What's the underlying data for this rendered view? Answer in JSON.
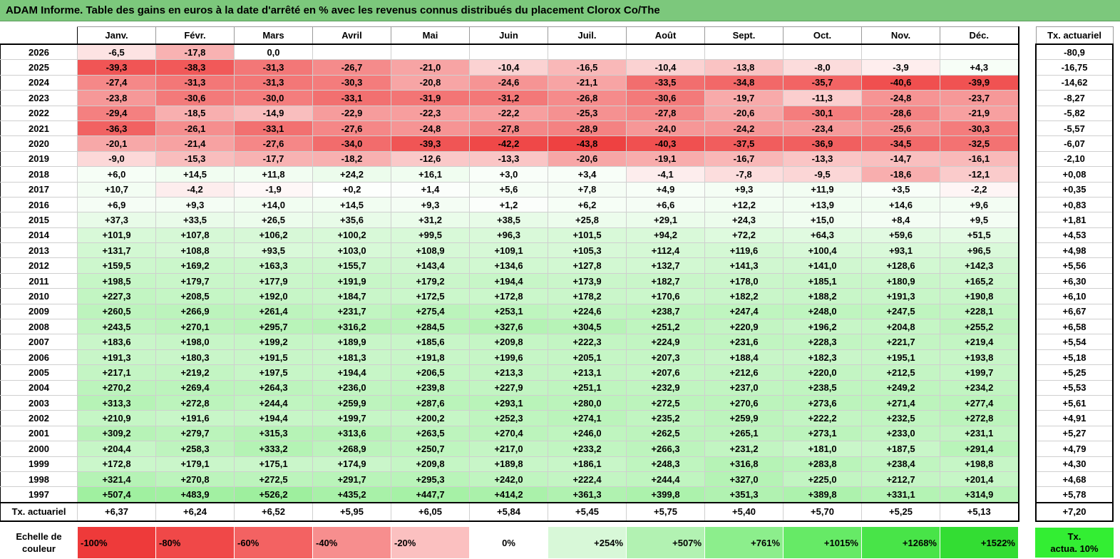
{
  "title": "ADAM Informe. Table des gains en euros à la date d'arrêté en % avec les revenus connus distribués du placement Clorox Co/The",
  "months": [
    "Janv.",
    "Févr.",
    "Mars",
    "Avril",
    "Mai",
    "Juin",
    "Juil.",
    "Août",
    "Sept.",
    "Oct.",
    "Nov.",
    "Déc."
  ],
  "actuarial_header": "Tx. actuariel",
  "rows": [
    {
      "year": "2026",
      "values": [
        "-6,5",
        "-17,8",
        "0,0",
        "",
        "",
        "",
        "",
        "",
        "",
        "",
        "",
        ""
      ],
      "rate": "-80,9"
    },
    {
      "year": "2025",
      "values": [
        "-39,3",
        "-38,3",
        "-31,3",
        "-26,7",
        "-21,0",
        "-10,4",
        "-16,5",
        "-10,4",
        "-13,8",
        "-8,0",
        "-3,9",
        "+4,3"
      ],
      "rate": "-16,75"
    },
    {
      "year": "2024",
      "values": [
        "-27,4",
        "-31,3",
        "-31,3",
        "-30,3",
        "-20,8",
        "-24,6",
        "-21,1",
        "-33,5",
        "-34,8",
        "-35,7",
        "-40,6",
        "-39,9"
      ],
      "rate": "-14,62"
    },
    {
      "year": "2023",
      "values": [
        "-23,8",
        "-30,6",
        "-30,0",
        "-33,1",
        "-31,9",
        "-31,2",
        "-26,8",
        "-30,6",
        "-19,7",
        "-11,3",
        "-24,8",
        "-23,7"
      ],
      "rate": "-8,27"
    },
    {
      "year": "2022",
      "values": [
        "-29,4",
        "-18,5",
        "-14,9",
        "-22,9",
        "-22,3",
        "-22,2",
        "-25,3",
        "-27,8",
        "-20,6",
        "-30,1",
        "-28,6",
        "-21,9"
      ],
      "rate": "-5,82"
    },
    {
      "year": "2021",
      "values": [
        "-36,3",
        "-26,1",
        "-33,1",
        "-27,6",
        "-24,8",
        "-27,8",
        "-28,9",
        "-24,0",
        "-24,2",
        "-23,4",
        "-25,6",
        "-30,3"
      ],
      "rate": "-5,57"
    },
    {
      "year": "2020",
      "values": [
        "-20,1",
        "-21,4",
        "-27,6",
        "-34,0",
        "-39,3",
        "-42,2",
        "-43,8",
        "-40,3",
        "-37,5",
        "-36,9",
        "-34,5",
        "-32,5"
      ],
      "rate": "-6,07"
    },
    {
      "year": "2019",
      "values": [
        "-9,0",
        "-15,3",
        "-17,7",
        "-18,2",
        "-12,6",
        "-13,3",
        "-20,6",
        "-19,1",
        "-16,7",
        "-13,3",
        "-14,7",
        "-16,1"
      ],
      "rate": "-2,10"
    },
    {
      "year": "2018",
      "values": [
        "+6,0",
        "+14,5",
        "+11,8",
        "+24,2",
        "+16,1",
        "+3,0",
        "+3,4",
        "-4,1",
        "-7,8",
        "-9,5",
        "-18,6",
        "-12,1"
      ],
      "rate": "+0,08"
    },
    {
      "year": "2017",
      "values": [
        "+10,7",
        "-4,2",
        "-1,9",
        "+0,2",
        "+1,4",
        "+5,6",
        "+7,8",
        "+4,9",
        "+9,3",
        "+11,9",
        "+3,5",
        "-2,2"
      ],
      "rate": "+0,35"
    },
    {
      "year": "2016",
      "values": [
        "+6,9",
        "+9,3",
        "+14,0",
        "+14,5",
        "+9,3",
        "+1,2",
        "+6,2",
        "+6,6",
        "+12,2",
        "+13,9",
        "+14,6",
        "+9,6"
      ],
      "rate": "+0,83"
    },
    {
      "year": "2015",
      "values": [
        "+37,3",
        "+33,5",
        "+26,5",
        "+35,6",
        "+31,2",
        "+38,5",
        "+25,8",
        "+29,1",
        "+24,3",
        "+15,0",
        "+8,4",
        "+9,5"
      ],
      "rate": "+1,81"
    },
    {
      "year": "2014",
      "values": [
        "+101,9",
        "+107,8",
        "+106,2",
        "+100,2",
        "+99,5",
        "+96,3",
        "+101,5",
        "+94,2",
        "+72,2",
        "+64,3",
        "+59,6",
        "+51,5"
      ],
      "rate": "+4,53"
    },
    {
      "year": "2013",
      "values": [
        "+131,7",
        "+108,8",
        "+93,5",
        "+103,0",
        "+108,9",
        "+109,1",
        "+105,3",
        "+112,4",
        "+119,6",
        "+100,4",
        "+93,1",
        "+96,5"
      ],
      "rate": "+4,98"
    },
    {
      "year": "2012",
      "values": [
        "+159,5",
        "+169,2",
        "+163,3",
        "+155,7",
        "+143,4",
        "+134,6",
        "+127,8",
        "+132,7",
        "+141,3",
        "+141,0",
        "+128,6",
        "+142,3"
      ],
      "rate": "+5,56"
    },
    {
      "year": "2011",
      "values": [
        "+198,5",
        "+179,7",
        "+177,9",
        "+191,9",
        "+179,2",
        "+194,4",
        "+173,9",
        "+182,7",
        "+178,0",
        "+185,1",
        "+180,9",
        "+165,2"
      ],
      "rate": "+6,30"
    },
    {
      "year": "2010",
      "values": [
        "+227,3",
        "+208,5",
        "+192,0",
        "+184,7",
        "+172,5",
        "+172,8",
        "+178,2",
        "+170,6",
        "+182,2",
        "+188,2",
        "+191,3",
        "+190,8"
      ],
      "rate": "+6,10"
    },
    {
      "year": "2009",
      "values": [
        "+260,5",
        "+266,9",
        "+261,4",
        "+231,7",
        "+275,4",
        "+253,1",
        "+224,6",
        "+238,7",
        "+247,4",
        "+248,0",
        "+247,5",
        "+228,1"
      ],
      "rate": "+6,67"
    },
    {
      "year": "2008",
      "values": [
        "+243,5",
        "+270,1",
        "+295,7",
        "+316,2",
        "+284,5",
        "+327,6",
        "+304,5",
        "+251,2",
        "+220,9",
        "+196,2",
        "+204,8",
        "+255,2"
      ],
      "rate": "+6,58"
    },
    {
      "year": "2007",
      "values": [
        "+183,6",
        "+198,0",
        "+199,2",
        "+189,9",
        "+185,6",
        "+209,8",
        "+222,3",
        "+224,9",
        "+231,6",
        "+228,3",
        "+221,7",
        "+219,4"
      ],
      "rate": "+5,54"
    },
    {
      "year": "2006",
      "values": [
        "+191,3",
        "+180,3",
        "+191,5",
        "+181,3",
        "+191,8",
        "+199,6",
        "+205,1",
        "+207,3",
        "+188,4",
        "+182,3",
        "+195,1",
        "+193,8"
      ],
      "rate": "+5,18"
    },
    {
      "year": "2005",
      "values": [
        "+217,1",
        "+219,2",
        "+197,5",
        "+194,4",
        "+206,5",
        "+213,3",
        "+213,1",
        "+207,6",
        "+212,6",
        "+220,0",
        "+212,5",
        "+199,7"
      ],
      "rate": "+5,25"
    },
    {
      "year": "2004",
      "values": [
        "+270,2",
        "+269,4",
        "+264,3",
        "+236,0",
        "+239,8",
        "+227,9",
        "+251,1",
        "+232,9",
        "+237,0",
        "+238,5",
        "+249,2",
        "+234,2"
      ],
      "rate": "+5,53"
    },
    {
      "year": "2003",
      "values": [
        "+313,3",
        "+272,8",
        "+244,4",
        "+259,9",
        "+287,6",
        "+293,1",
        "+280,0",
        "+272,5",
        "+270,6",
        "+273,6",
        "+271,4",
        "+277,4"
      ],
      "rate": "+5,61"
    },
    {
      "year": "2002",
      "values": [
        "+210,9",
        "+191,6",
        "+194,4",
        "+199,7",
        "+200,2",
        "+252,3",
        "+274,1",
        "+235,2",
        "+259,9",
        "+222,2",
        "+232,5",
        "+272,8"
      ],
      "rate": "+4,91"
    },
    {
      "year": "2001",
      "values": [
        "+309,2",
        "+279,7",
        "+315,3",
        "+313,6",
        "+263,5",
        "+270,4",
        "+246,0",
        "+262,5",
        "+265,1",
        "+273,1",
        "+233,0",
        "+231,1"
      ],
      "rate": "+5,27"
    },
    {
      "year": "2000",
      "values": [
        "+204,4",
        "+258,3",
        "+333,2",
        "+268,9",
        "+250,7",
        "+217,0",
        "+233,2",
        "+266,3",
        "+231,2",
        "+181,0",
        "+187,5",
        "+291,4"
      ],
      "rate": "+4,79"
    },
    {
      "year": "1999",
      "values": [
        "+172,8",
        "+179,1",
        "+175,1",
        "+174,9",
        "+209,8",
        "+189,8",
        "+186,1",
        "+248,3",
        "+316,8",
        "+283,8",
        "+238,4",
        "+198,8"
      ],
      "rate": "+4,30"
    },
    {
      "year": "1998",
      "values": [
        "+321,4",
        "+270,8",
        "+272,5",
        "+291,7",
        "+295,3",
        "+242,0",
        "+222,4",
        "+244,4",
        "+327,0",
        "+225,0",
        "+212,7",
        "+201,4"
      ],
      "rate": "+4,68"
    },
    {
      "year": "1997",
      "values": [
        "+507,4",
        "+483,9",
        "+526,2",
        "+435,2",
        "+447,7",
        "+414,2",
        "+361,3",
        "+399,8",
        "+351,3",
        "+389,8",
        "+331,1",
        "+314,9"
      ],
      "rate": "+5,78"
    }
  ],
  "footer": {
    "label": "Tx. actuariel",
    "values": [
      "+6,37",
      "+6,24",
      "+6,52",
      "+5,95",
      "+6,05",
      "+5,84",
      "+5,45",
      "+5,75",
      "+5,40",
      "+5,70",
      "+5,25",
      "+5,13"
    ],
    "rate": "+7,20"
  },
  "legend": {
    "label_line1": "Echelle de",
    "label_line2": "couleur",
    "items": [
      {
        "text": "-100%",
        "color": "#ee3a3a",
        "align": "left"
      },
      {
        "text": "-80%",
        "color": "#f04848",
        "align": "left"
      },
      {
        "text": "-60%",
        "color": "#f36262",
        "align": "left"
      },
      {
        "text": "-40%",
        "color": "#f78e8e",
        "align": "left"
      },
      {
        "text": "-20%",
        "color": "#fbc0c0",
        "align": "left"
      },
      {
        "text": "0%",
        "color": "#ffffff",
        "align": "center"
      },
      {
        "text": "+254%",
        "color": "#d8f8d8",
        "align": "right"
      },
      {
        "text": "+507%",
        "color": "#b2f2b2",
        "align": "right"
      },
      {
        "text": "+761%",
        "color": "#8cee8c",
        "align": "right"
      },
      {
        "text": "+1015%",
        "color": "#66ea66",
        "align": "right"
      },
      {
        "text": "+1268%",
        "color": "#48e448",
        "align": "right"
      },
      {
        "text": "+1522%",
        "color": "#33dd33",
        "align": "right"
      }
    ],
    "act_line1": "Tx.",
    "act_line2": "actua. 10%",
    "act_color": "#33ee33"
  }
}
